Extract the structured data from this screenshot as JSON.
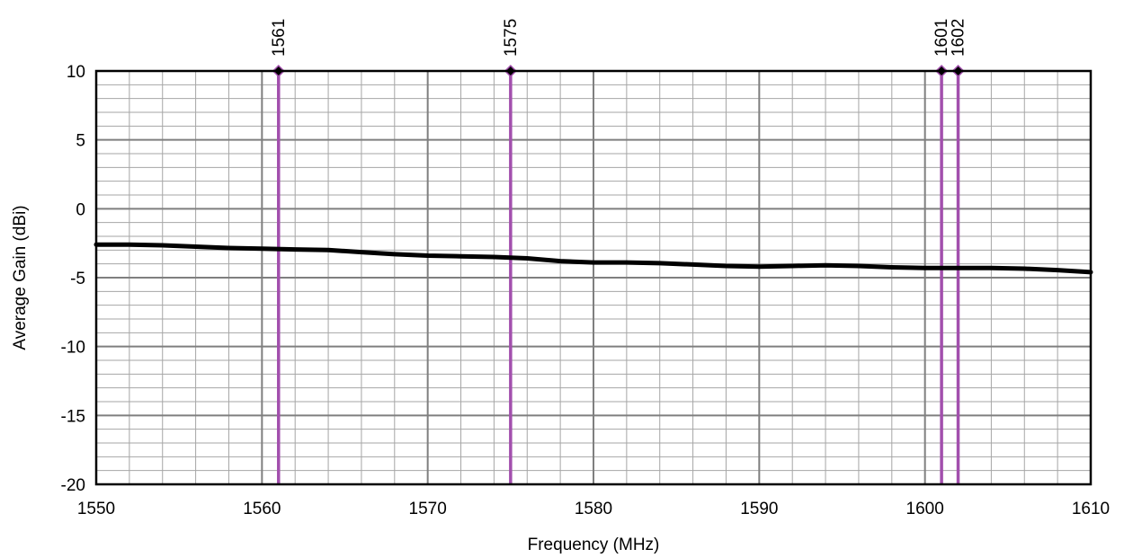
{
  "chart_data": {
    "type": "line",
    "xlabel": "Frequency (MHz)",
    "ylabel": "Average Gain (dBi)",
    "xlim": [
      1550,
      1610
    ],
    "ylim": [
      -20,
      10
    ],
    "x_ticks": [
      1550,
      1560,
      1570,
      1580,
      1590,
      1600,
      1610
    ],
    "x_tick_labels": [
      "1550",
      "1560",
      "1570",
      "1580",
      "1590",
      "1600",
      "1610"
    ],
    "y_ticks": [
      10,
      5,
      0,
      -5,
      -10,
      -15,
      -20
    ],
    "y_tick_labels": [
      "10",
      "5",
      "0",
      "-5",
      "-10",
      "-15",
      "-20"
    ],
    "grid": true,
    "x_minor_step": 2,
    "y_minor_step": 1,
    "series": [
      {
        "x": [
          1550,
          1552,
          1554,
          1556,
          1558,
          1560,
          1562,
          1564,
          1566,
          1568,
          1570,
          1572,
          1574,
          1576,
          1578,
          1580,
          1582,
          1584,
          1586,
          1588,
          1590,
          1592,
          1594,
          1596,
          1598,
          1600,
          1602,
          1604,
          1606,
          1608,
          1610
        ],
        "values": [
          -2.6,
          -2.6,
          -2.65,
          -2.75,
          -2.85,
          -2.9,
          -2.95,
          -3.0,
          -3.15,
          -3.3,
          -3.4,
          -3.45,
          -3.5,
          -3.6,
          -3.8,
          -3.9,
          -3.9,
          -3.95,
          -4.05,
          -4.15,
          -4.2,
          -4.15,
          -4.1,
          -4.15,
          -4.25,
          -4.3,
          -4.3,
          -4.3,
          -4.35,
          -4.45,
          -4.6
        ],
        "color": "#000000"
      }
    ],
    "markers": [
      {
        "x": 1561,
        "label": "1561"
      },
      {
        "x": 1575,
        "label": "1575"
      },
      {
        "x": 1601,
        "label": "1601"
      },
      {
        "x": 1602,
        "label": "1602"
      }
    ],
    "marker_color": "#a24fad",
    "marker_point_color": "#000000"
  }
}
